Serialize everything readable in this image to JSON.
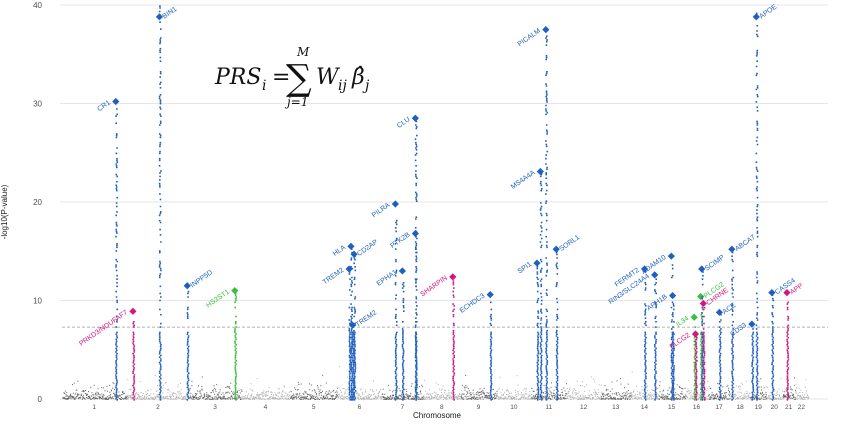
{
  "chart_data": {
    "type": "scatter",
    "subtype": "manhattan",
    "xlabel": "Chromosome",
    "ylabel": "-log10(P-value)",
    "ylim": [
      0,
      40
    ],
    "yticks": [
      0,
      10,
      20,
      30,
      40
    ],
    "significance_line": 7.3,
    "grid": true,
    "formula": {
      "lhs": "PRS",
      "lhs_sub": "i",
      "sum_upper": "M",
      "sum_lower": "j=1",
      "term": "W",
      "term_sub": "ij",
      "beta": "β̂",
      "beta_sub": "j"
    },
    "chromosomes": [
      {
        "label": "1",
        "start": 0,
        "end": 248
      },
      {
        "label": "2",
        "start": 248,
        "end": 490
      },
      {
        "label": "3",
        "start": 490,
        "end": 688
      },
      {
        "label": "4",
        "start": 688,
        "end": 878
      },
      {
        "label": "5",
        "start": 878,
        "end": 1059
      },
      {
        "label": "6",
        "start": 1059,
        "end": 1230
      },
      {
        "label": "7",
        "start": 1230,
        "end": 1389
      },
      {
        "label": "8",
        "start": 1389,
        "end": 1534
      },
      {
        "label": "9",
        "start": 1534,
        "end": 1672
      },
      {
        "label": "10",
        "start": 1672,
        "end": 1806
      },
      {
        "label": "11",
        "start": 1806,
        "end": 1941
      },
      {
        "label": "12",
        "start": 1941,
        "end": 2074
      },
      {
        "label": "13",
        "start": 2074,
        "end": 2188
      },
      {
        "label": "14",
        "start": 2188,
        "end": 2295
      },
      {
        "label": "15",
        "start": 2295,
        "end": 2397
      },
      {
        "label": "16",
        "start": 2397,
        "end": 2487
      },
      {
        "label": "17",
        "start": 2487,
        "end": 2570
      },
      {
        "label": "18",
        "start": 2570,
        "end": 2650
      },
      {
        "label": "19",
        "start": 2650,
        "end": 2709
      },
      {
        "label": "20",
        "start": 2709,
        "end": 2773
      },
      {
        "label": "21",
        "start": 2773,
        "end": 2820
      },
      {
        "label": "22",
        "start": 2820,
        "end": 2871
      }
    ],
    "colors": {
      "chrom_odd": "#5f5f5f",
      "chrom_even": "#b3b3b3",
      "blue": "#1f5fbf",
      "pink": "#d4157f",
      "green": "#3cbf3c"
    },
    "loci": [
      {
        "label": "CR1",
        "x": 207,
        "y": 30.2,
        "color": "blue",
        "text_side": "left"
      },
      {
        "label": "PRKD3/NDUFAF7",
        "x": 273,
        "y": 8.9,
        "color": "pink",
        "text_side": "left"
      },
      {
        "label": "BIN1",
        "x": 375,
        "y": 40,
        "color": "blue",
        "text_side": "right",
        "tower_top": 40
      },
      {
        "label": "INPP5D",
        "x": 482,
        "y": 11.5,
        "color": "blue",
        "text_side": "right"
      },
      {
        "label": "HS3ST1",
        "x": 665,
        "y": 11,
        "color": "green",
        "text_side": "left"
      },
      {
        "label": "HLA",
        "x": 1112,
        "y": 15.5,
        "color": "blue",
        "text_side": "left"
      },
      {
        "label": "TREM2",
        "x": 1105,
        "y": 13.2,
        "color": "blue",
        "text_side": "left"
      },
      {
        "label": "CD2AP",
        "x": 1124,
        "y": 14.7,
        "color": "blue",
        "text_side": "right"
      },
      {
        "label": "TREM2",
        "x": 1118,
        "y": 7.5,
        "color": "blue",
        "text_side": "right"
      },
      {
        "label": "PILRA",
        "x": 1283,
        "y": 19.8,
        "color": "blue",
        "text_side": "left"
      },
      {
        "label": "EPHA1",
        "x": 1310,
        "y": 13,
        "color": "blue",
        "text_side": "left"
      },
      {
        "label": "PTK2B",
        "x": 1360,
        "y": 16.8,
        "color": "blue",
        "text_side": "left"
      },
      {
        "label": "CLU",
        "x": 1360,
        "y": 28.5,
        "color": "blue",
        "text_side": "left"
      },
      {
        "label": "SHARPIN",
        "x": 1504,
        "y": 12.4,
        "color": "pink",
        "text_side": "left"
      },
      {
        "label": "ECHDC3",
        "x": 1648,
        "y": 10.6,
        "color": "blue",
        "text_side": "left"
      },
      {
        "label": "SPI1",
        "x": 1828,
        "y": 13.8,
        "color": "blue",
        "text_side": "left"
      },
      {
        "label": "MS4A4A",
        "x": 1841,
        "y": 23.1,
        "color": "blue",
        "text_side": "left"
      },
      {
        "label": "PICALM",
        "x": 1862,
        "y": 37.5,
        "color": "blue",
        "text_side": "left"
      },
      {
        "label": "SORL1",
        "x": 1902,
        "y": 15.2,
        "color": "blue",
        "text_side": "right"
      },
      {
        "label": "FERMT2",
        "x": 2242,
        "y": 13.2,
        "color": "blue",
        "text_side": "left"
      },
      {
        "label": "RIN3/SLC24A4",
        "x": 2281,
        "y": 12.6,
        "color": "blue",
        "text_side": "left"
      },
      {
        "label": "ADAM10",
        "x": 2345,
        "y": 14.5,
        "color": "blue",
        "text_side": "left"
      },
      {
        "label": "APH1B",
        "x": 2350,
        "y": 10.5,
        "color": "blue",
        "text_side": "left"
      },
      {
        "label": "IL34",
        "x": 2433,
        "y": 8.3,
        "color": "green",
        "text_side": "left"
      },
      {
        "label": "PLCG2",
        "x": 2438,
        "y": 6.6,
        "color": "pink",
        "text_side": "left"
      },
      {
        "label": "PLCG2",
        "x": 2458,
        "y": 10.4,
        "color": "green",
        "text_side": "right"
      },
      {
        "label": "SCIMP",
        "x": 2462,
        "y": 13.2,
        "color": "blue",
        "text_side": "right"
      },
      {
        "label": "CHRNE",
        "x": 2468,
        "y": 9.7,
        "color": "pink",
        "text_side": "right"
      },
      {
        "label": "ACE",
        "x": 2530,
        "y": 8.8,
        "color": "blue",
        "text_side": "right"
      },
      {
        "label": "ABCA7",
        "x": 2578,
        "y": 15.2,
        "color": "blue",
        "text_side": "right"
      },
      {
        "label": "CD33",
        "x": 2655,
        "y": 7.6,
        "color": "blue",
        "text_side": "left"
      },
      {
        "label": "APOE",
        "x": 2672,
        "y": 40,
        "color": "blue",
        "text_side": "right",
        "tower_top": 40
      },
      {
        "label": "CASS4",
        "x": 2732,
        "y": 10.8,
        "color": "blue",
        "text_side": "right"
      },
      {
        "label": "APP",
        "x": 2790,
        "y": 10.8,
        "color": "pink",
        "text_side": "right"
      }
    ]
  }
}
